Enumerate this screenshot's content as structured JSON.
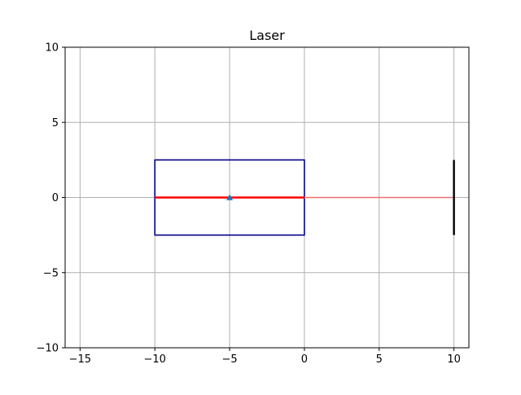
{
  "chart_data": {
    "type": "line",
    "title": "Laser",
    "xlabel": "",
    "ylabel": "",
    "xlim": [
      -16,
      11
    ],
    "ylim": [
      -10,
      10
    ],
    "grid": true,
    "x_ticks": [
      -15,
      -10,
      -5,
      0,
      5,
      10
    ],
    "y_ticks": [
      -10,
      -5,
      0,
      5,
      10
    ],
    "x_tick_labels": [
      "−15",
      "−10",
      "−5",
      "0",
      "5",
      "10"
    ],
    "y_tick_labels": [
      "−10",
      "−5",
      "0",
      "5",
      "10"
    ],
    "elements": [
      {
        "kind": "rectangle",
        "x_range": [
          -10,
          0
        ],
        "y_range": [
          -2.5,
          2.5
        ],
        "color": "#00008b"
      },
      {
        "kind": "segment",
        "x": [
          -10,
          0
        ],
        "y": [
          0,
          0
        ],
        "color": "#ff0000",
        "style": "thick"
      },
      {
        "kind": "segment",
        "x": [
          0,
          10
        ],
        "y": [
          0,
          0
        ],
        "color": "#f07070",
        "style": "thin"
      },
      {
        "kind": "segment",
        "x": [
          10,
          10
        ],
        "y": [
          -2.5,
          2.5
        ],
        "color": "#000000",
        "style": "thick"
      },
      {
        "kind": "marker",
        "x": -5,
        "y": 0,
        "shape": "triangle",
        "color": "#1f77b4"
      }
    ]
  }
}
